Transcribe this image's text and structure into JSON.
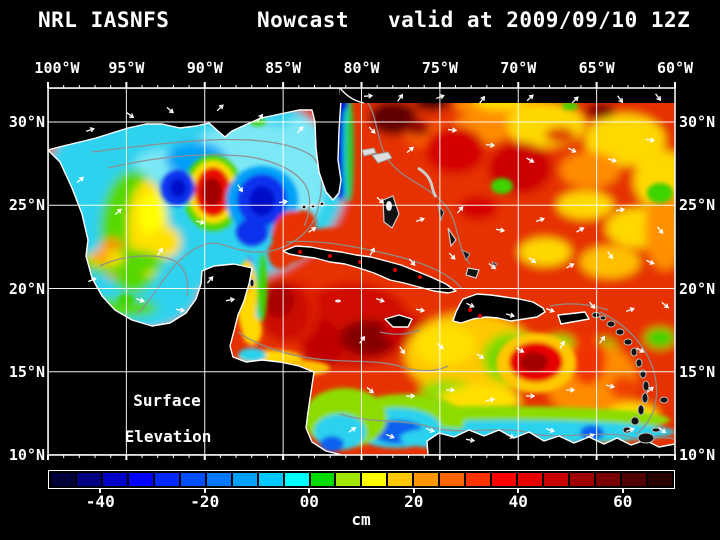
{
  "title": {
    "left": "NRL IASNFS",
    "center": "Nowcast",
    "right": "valid at 2009/09/10 12Z"
  },
  "map": {
    "lon_labels": [
      "100°W",
      "95°W",
      "90°W",
      "85°W",
      "80°W",
      "75°W",
      "70°W",
      "65°W",
      "60°W"
    ],
    "lat_labels": [
      "30°N",
      "25°N",
      "20°N",
      "15°N",
      "10°N"
    ],
    "annotation": {
      "line1": "Surface",
      "line2": "Elevation"
    }
  },
  "colorbar": {
    "units": "cm",
    "tick_labels": [
      "-40",
      "-20",
      "00",
      "20",
      "40",
      "60"
    ],
    "cells": [
      "#000038",
      "#000080",
      "#0000c8",
      "#0000ff",
      "#0028ff",
      "#0050ff",
      "#0078ff",
      "#00a0ff",
      "#00c8ff",
      "#00ffff",
      "#00dc00",
      "#a0e600",
      "#ffff00",
      "#ffc800",
      "#ff9600",
      "#ff6400",
      "#ff3200",
      "#ff0000",
      "#e60000",
      "#c80000",
      "#a00000",
      "#780000",
      "#500000",
      "#280000"
    ]
  },
  "colors": {
    "background": "#000000",
    "text": "#ffffff",
    "grid": "#ffffff",
    "coastline": "#ffffff",
    "contour": "#8f8f8f"
  }
}
